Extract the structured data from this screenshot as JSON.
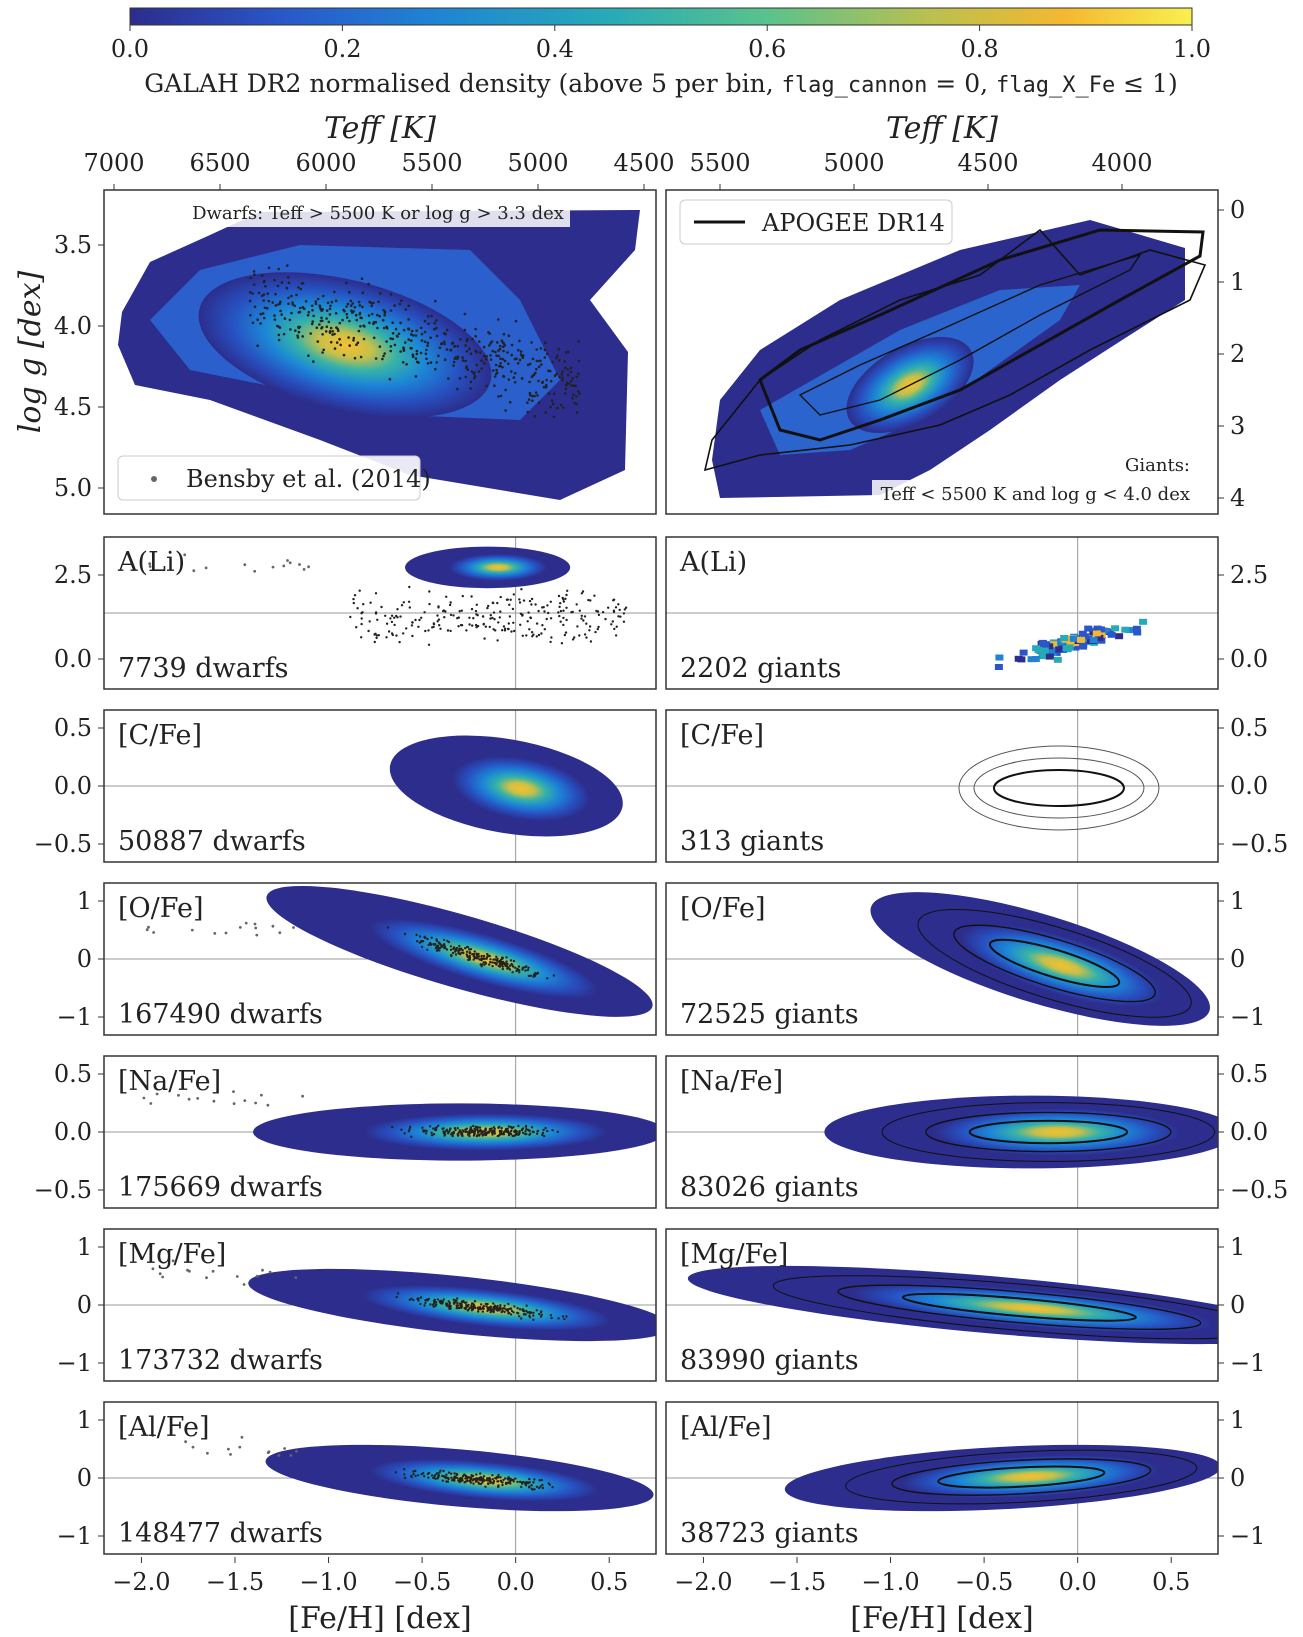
{
  "colorbar": {
    "ticks": [
      "0.0",
      "0.2",
      "0.4",
      "0.6",
      "0.8",
      "1.0"
    ],
    "label_parts": [
      "GALAH DR2 normalised density (above 5 per bin, ",
      "flag_cannon",
      " = 0, ",
      "flag_X_Fe",
      " ≤ 1)"
    ],
    "colors": [
      "#2c2d8c",
      "#2a56c8",
      "#1f82d4",
      "#27aab8",
      "#5ac28c",
      "#b8c050",
      "#f4b830",
      "#f8f050"
    ]
  },
  "colors": {
    "bensby_dots": "#444444",
    "apogee_contour": "#111111",
    "refline": "#999999",
    "frame": "#333333"
  },
  "hr_panels": {
    "left": {
      "top_axis_label": "Teff [K]",
      "teff_ticks": [
        "7000",
        "6500",
        "6000",
        "5500",
        "5000",
        "4500"
      ],
      "ylabel": "log g [dex]",
      "logg_ticks": [
        "3.5",
        "4.0",
        "4.5",
        "5.0"
      ],
      "selection_note": "Dwarfs: Teff > 5500 K or log g > 3.3 dex",
      "legend": "Bensby et al. (2014)"
    },
    "right": {
      "top_axis_label": "Teff [K]",
      "teff_ticks": [
        "5500",
        "5000",
        "4500",
        "4000"
      ],
      "logg_ticks": [
        "0",
        "1",
        "2",
        "3",
        "4"
      ],
      "legend": "APOGEE DR14",
      "giants_title": "Giants:",
      "giants_cut": "Teff < 5500 K and log g < 4.0 dex"
    }
  },
  "abundance_rows": [
    {
      "label": "A(Li)",
      "dwarfs": "7739 dwarfs",
      "giants": "2202 giants",
      "ticks": [
        "2.5",
        "0.0"
      ]
    },
    {
      "label": "[C/Fe]",
      "dwarfs": "50887 dwarfs",
      "giants": "313 giants",
      "ticks": [
        "0.5",
        "0.0",
        "−0.5"
      ]
    },
    {
      "label": "[O/Fe]",
      "dwarfs": "167490 dwarfs",
      "giants": "72525 giants",
      "ticks": [
        "1",
        "0",
        "−1"
      ]
    },
    {
      "label": "[Na/Fe]",
      "dwarfs": "175669 dwarfs",
      "giants": "83026 giants",
      "ticks": [
        "0.5",
        "0.0",
        "−0.5"
      ]
    },
    {
      "label": "[Mg/Fe]",
      "dwarfs": "173732 dwarfs",
      "giants": "83990 giants",
      "ticks": [
        "1",
        "0",
        "−1"
      ]
    },
    {
      "label": "[Al/Fe]",
      "dwarfs": "148477 dwarfs",
      "giants": "38723 giants",
      "ticks": [
        "1",
        "0",
        "−1"
      ]
    }
  ],
  "x_axis": {
    "ticks": [
      "−2.0",
      "−1.5",
      "−1.0",
      "−0.5",
      "0.0",
      "0.5"
    ],
    "label": "[Fe/H] [dex]"
  },
  "chart_data": [
    {
      "type": "heatmap",
      "panel": "dwarfs-hr",
      "x_axis": "Teff [K]",
      "y_axis": "log g [dex]",
      "xlim": [
        7000,
        4500
      ],
      "ylim": [
        5.1,
        3.3
      ],
      "density_peak": {
        "teff": 5650,
        "logg": 4.1
      }
    },
    {
      "type": "heatmap",
      "panel": "giants-hr",
      "x_axis": "Teff [K]",
      "y_axis": "log g [dex]",
      "xlim": [
        5750,
        3750
      ],
      "ylim": [
        4.0,
        -0.2
      ],
      "density_peak": {
        "teff": 4750,
        "logg": 2.5
      }
    },
    {
      "type": "heatmap",
      "panel": "dwarfs-Li",
      "xlim": [
        -2.2,
        0.75
      ],
      "ylim": [
        -0.9,
        3.7
      ],
      "blob": {
        "feh": -0.15,
        "val": 2.6
      }
    },
    {
      "type": "heatmap",
      "panel": "giants-Li",
      "xlim": [
        -2.2,
        0.75
      ],
      "ylim": [
        -0.9,
        3.7
      ],
      "blob": {
        "feh": -0.05,
        "val": 0.7
      }
    },
    {
      "type": "heatmap",
      "panel": "dwarfs-C",
      "xlim": [
        -2.2,
        0.75
      ],
      "ylim": [
        -0.7,
        0.7
      ],
      "blob": {
        "feh": -0.05,
        "val": 0.0
      }
    },
    {
      "type": "heatmap",
      "panel": "dwarfs-O",
      "xlim": [
        -2.2,
        0.75
      ],
      "ylim": [
        -1.05,
        1.05
      ],
      "blob": {
        "feh": -0.15,
        "val": 0.1
      }
    },
    {
      "type": "heatmap",
      "panel": "giants-O",
      "xlim": [
        -2.2,
        0.75
      ],
      "ylim": [
        -1.05,
        1.05
      ],
      "blob": {
        "feh": -0.1,
        "val": 0.1
      }
    },
    {
      "type": "heatmap",
      "panel": "dwarfs-Na",
      "xlim": [
        -2.2,
        0.75
      ],
      "ylim": [
        -0.75,
        0.75
      ],
      "blob": {
        "feh": -0.15,
        "val": 0.02
      }
    },
    {
      "type": "heatmap",
      "panel": "giants-Na",
      "xlim": [
        -2.2,
        0.75
      ],
      "ylim": [
        -0.75,
        0.75
      ],
      "blob": {
        "feh": -0.1,
        "val": 0.03
      }
    },
    {
      "type": "heatmap",
      "panel": "dwarfs-Mg",
      "xlim": [
        -2.2,
        0.75
      ],
      "ylim": [
        -1.05,
        1.05
      ],
      "blob": {
        "feh": -0.2,
        "val": 0.1
      }
    },
    {
      "type": "heatmap",
      "panel": "giants-Mg",
      "xlim": [
        -2.2,
        0.75
      ],
      "ylim": [
        -1.05,
        1.05
      ],
      "blob": {
        "feh": -0.3,
        "val": 0.1
      }
    },
    {
      "type": "heatmap",
      "panel": "dwarfs-Al",
      "xlim": [
        -2.2,
        0.75
      ],
      "ylim": [
        -1.05,
        1.05
      ],
      "blob": {
        "feh": -0.15,
        "val": 0.05
      }
    },
    {
      "type": "heatmap",
      "panel": "giants-Al",
      "xlim": [
        -2.2,
        0.75
      ],
      "ylim": [
        -1.05,
        1.05
      ],
      "blob": {
        "feh": -0.35,
        "val": 0.2
      }
    }
  ]
}
